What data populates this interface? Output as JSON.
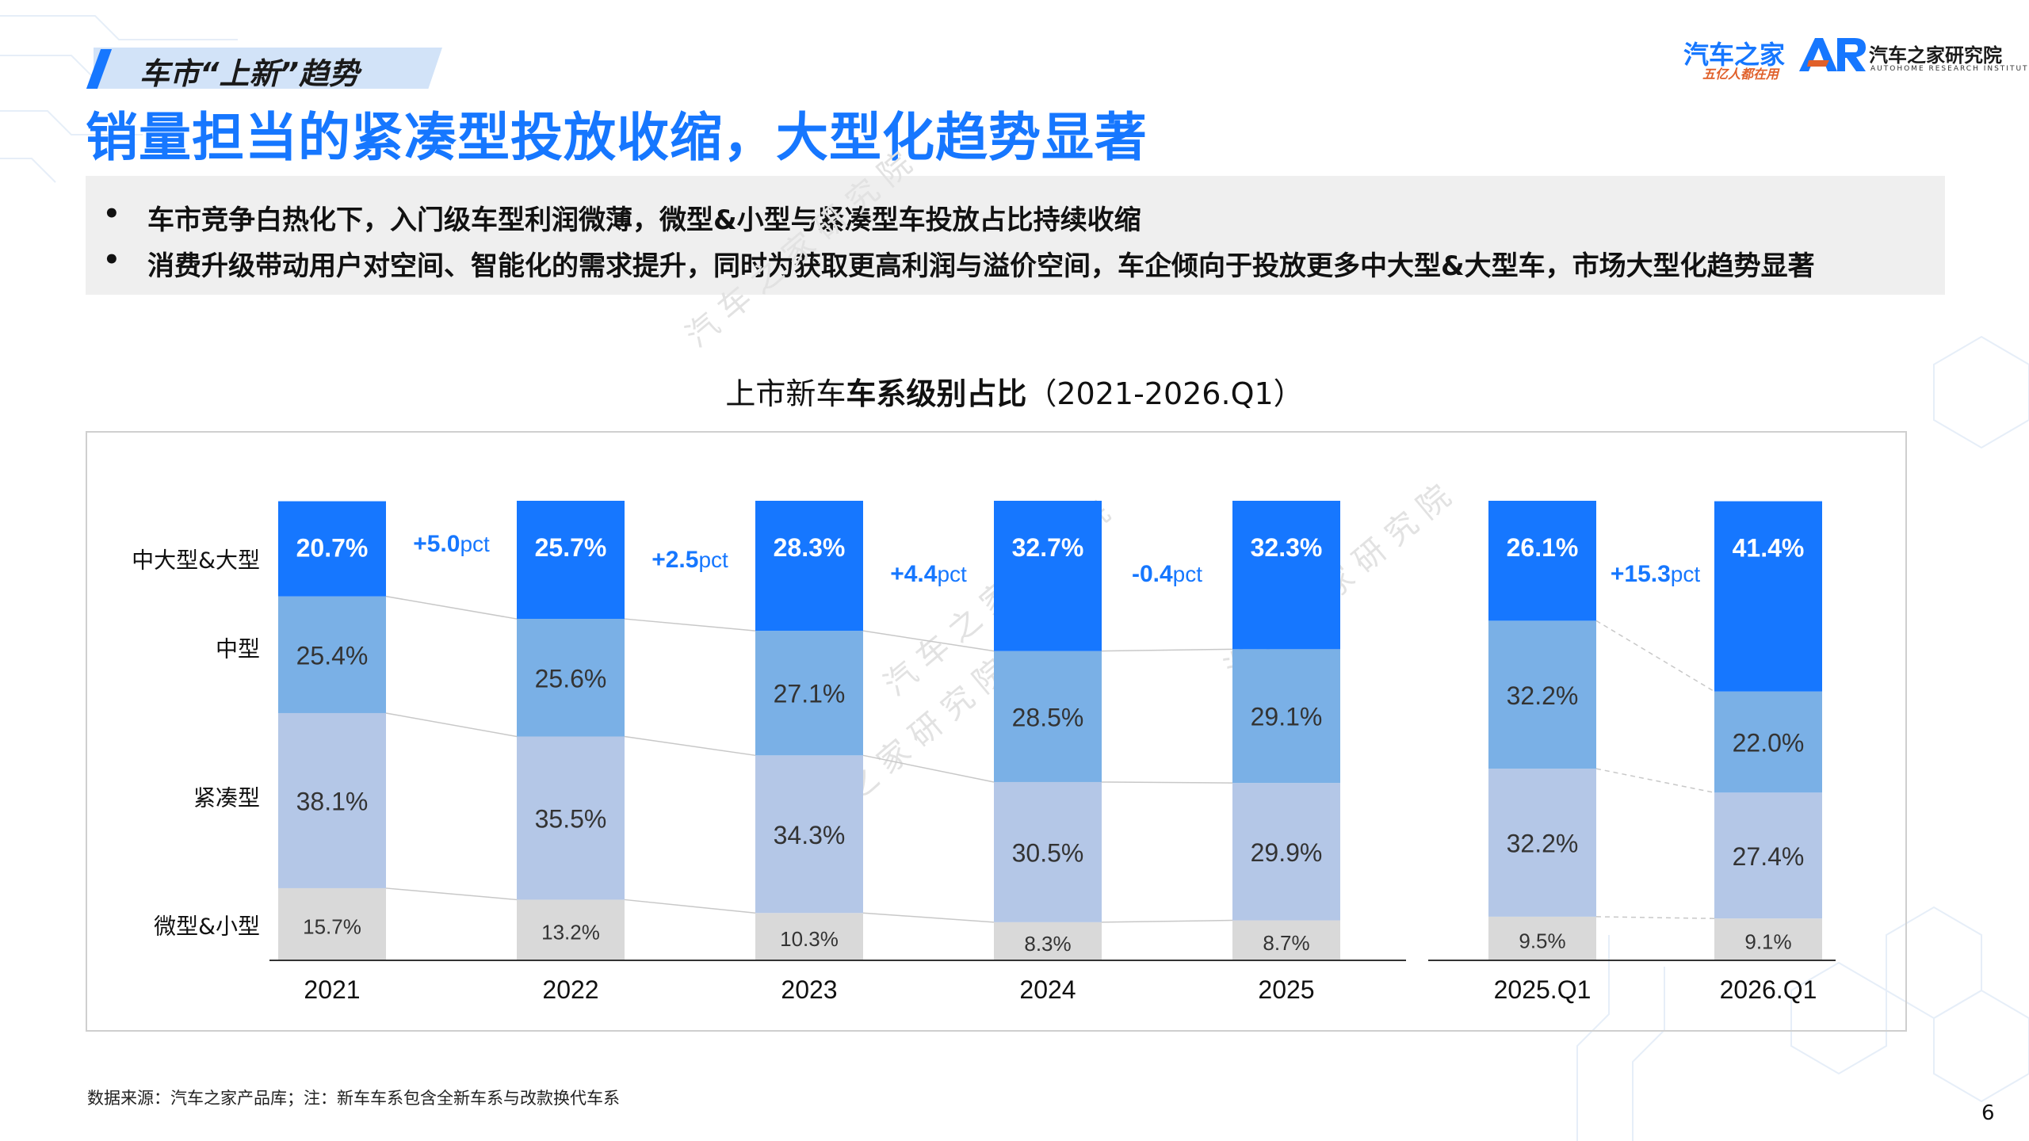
{
  "header": {
    "section_tag": "车市“上新”趋势",
    "title": "销量担当的紧凑型投放收缩，大型化趋势显著"
  },
  "logo": {
    "brand": "汽车之家",
    "slogan": "五亿人都在用",
    "mark": "AR",
    "institute": "汽车之家研究院",
    "institute_en": "AUTOHOME RESEARCH INSTITUTE"
  },
  "summary": {
    "bullet": "•",
    "items": [
      "车市竞争白热化下，入门级车型利润微薄，微型&小型与紧凑型车投放占比持续收缩",
      "消费升级带动用户对空间、智能化的需求提升，同时为获取更高利润与溢价空间，车企倾向于投放更多中大型&大型车，市场大型化趋势显著"
    ]
  },
  "chart_title": {
    "normal": "上市新车",
    "bold": "车系级别占比",
    "suffix": "（2021-2026.Q1）"
  },
  "chart_data": {
    "type": "bar",
    "stacked": true,
    "unit": "%",
    "categories": [
      "2021",
      "2022",
      "2023",
      "2024",
      "2025",
      "2025.Q1",
      "2026.Q1"
    ],
    "groups": [
      [
        "2021",
        "2022",
        "2023",
        "2024",
        "2025"
      ],
      [
        "2025.Q1",
        "2026.Q1"
      ]
    ],
    "series": [
      {
        "name": "微型&小型",
        "values": [
          15.7,
          13.2,
          10.3,
          8.3,
          8.7,
          9.5,
          9.1
        ],
        "color": "#d9d9d9"
      },
      {
        "name": "紧凑型",
        "values": [
          38.1,
          35.5,
          34.3,
          30.5,
          29.9,
          32.2,
          27.4
        ],
        "color": "#b4c7e7"
      },
      {
        "name": "中型",
        "values": [
          25.4,
          25.6,
          27.1,
          28.5,
          29.1,
          32.2,
          22.0
        ],
        "color": "#7ab0e6"
      },
      {
        "name": "中大型&大型",
        "values": [
          20.7,
          25.7,
          28.3,
          32.7,
          32.3,
          26.1,
          41.4
        ],
        "color": "#1677ff"
      }
    ],
    "annotations": [
      {
        "between": [
          "2021",
          "2022"
        ],
        "sign": "+",
        "value": "5.0",
        "unit": "pct"
      },
      {
        "between": [
          "2022",
          "2023"
        ],
        "sign": "+",
        "value": "2.5",
        "unit": "pct"
      },
      {
        "between": [
          "2023",
          "2024"
        ],
        "sign": "+",
        "value": "4.4",
        "unit": "pct"
      },
      {
        "between": [
          "2024",
          "2025"
        ],
        "sign": "-",
        "value": "0.4",
        "unit": "pct"
      },
      {
        "between": [
          "2025.Q1",
          "2026.Q1"
        ],
        "sign": "+",
        "value": "15.3",
        "unit": "pct"
      }
    ],
    "legend_placement": "left",
    "ylim": [
      0,
      100
    ]
  },
  "source_note": "数据来源：汽车之家产品库；注：新车车系包含全新车系与改款换代车系",
  "page_number": "6",
  "watermark": "汽 车 之 家 研 究 院",
  "colors": {
    "accent": "#1677ff",
    "summary_bg": "#efefef",
    "slogan": "#e0602a"
  }
}
